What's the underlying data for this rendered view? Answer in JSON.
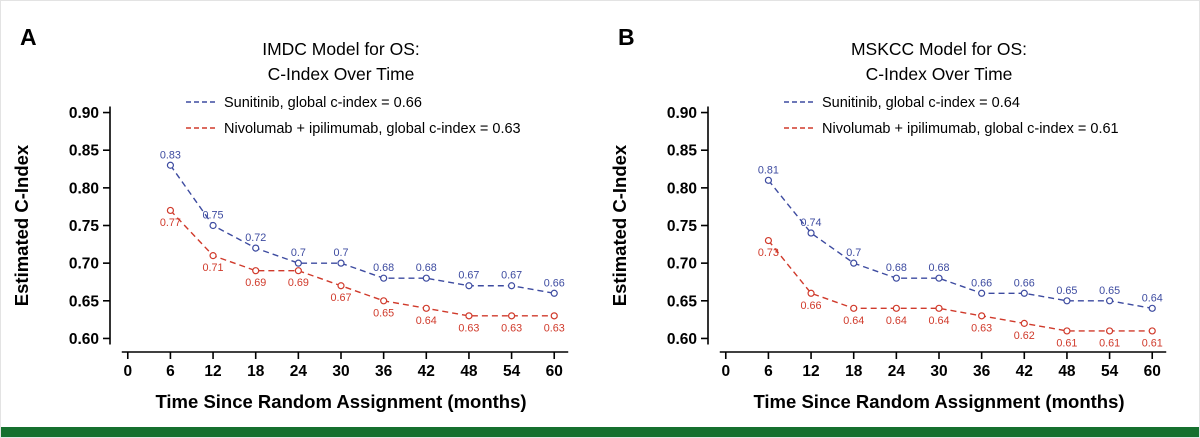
{
  "figure": {
    "background": "#ffffff",
    "accent_bar_color": "#15702e",
    "axis_color": "#000000",
    "text_color": "#000000"
  },
  "chart_data": [
    {
      "type": "line",
      "panel_label": "A",
      "title_lines": [
        "IMDC Model for OS:",
        "C-Index Over Time"
      ],
      "xlabel": "Time Since Random Assignment (months)",
      "ylabel": "Estimated C-Index",
      "x_ticks": [
        0,
        6,
        12,
        18,
        24,
        30,
        36,
        42,
        48,
        54,
        60
      ],
      "x_tick_labels": [
        "0",
        "6",
        "12",
        "18",
        "24",
        "30",
        "36",
        "42",
        "48",
        "54",
        "60"
      ],
      "y_ticks": [
        0.6,
        0.65,
        0.7,
        0.75,
        0.8,
        0.85,
        0.9
      ],
      "y_tick_labels": [
        "0.60",
        "0.65",
        "0.70",
        "0.75",
        "0.80",
        "0.85",
        "0.90"
      ],
      "xlim": [
        -2.5,
        62.5
      ],
      "ylim": [
        0.582,
        0.918
      ],
      "grid": false,
      "legend_position": "top-inside",
      "legend": [
        {
          "label": "Sunitinib, global c-index = 0.66",
          "color": "#3d4ba0"
        },
        {
          "label": "Nivolumab + ipilimumab, global c-index = 0.63",
          "color": "#d03a2b"
        }
      ],
      "series": [
        {
          "name": "Sunitinib",
          "color": "#3d4ba0",
          "line_style": "dashed",
          "marker": "open-circle",
          "label_position": "above",
          "x": [
            6,
            12,
            18,
            24,
            30,
            36,
            42,
            48,
            54,
            60
          ],
          "y": [
            0.83,
            0.75,
            0.72,
            0.7,
            0.7,
            0.68,
            0.68,
            0.67,
            0.67,
            0.66
          ],
          "point_labels": [
            "0.83",
            "0.75",
            "0.72",
            "0.7",
            "0.7",
            "0.68",
            "0.68",
            "0.67",
            "0.67",
            "0.66"
          ]
        },
        {
          "name": "Nivolumab + ipilimumab",
          "color": "#d03a2b",
          "line_style": "dashed",
          "marker": "open-circle",
          "label_position": "below",
          "x": [
            6,
            12,
            18,
            24,
            30,
            36,
            42,
            48,
            54,
            60
          ],
          "y": [
            0.77,
            0.71,
            0.69,
            0.69,
            0.67,
            0.65,
            0.64,
            0.63,
            0.63,
            0.63
          ],
          "point_labels": [
            "0.77",
            "0.71",
            "0.69",
            "0.69",
            "0.67",
            "0.65",
            "0.64",
            "0.63",
            "0.63",
            "0.63"
          ]
        }
      ]
    },
    {
      "type": "line",
      "panel_label": "B",
      "title_lines": [
        "MSKCC Model for OS:",
        "C-Index Over Time"
      ],
      "xlabel": "Time Since Random Assignment (months)",
      "ylabel": "Estimated C-Index",
      "x_ticks": [
        0,
        6,
        12,
        18,
        24,
        30,
        36,
        42,
        48,
        54,
        60
      ],
      "x_tick_labels": [
        "0",
        "6",
        "12",
        "18",
        "24",
        "30",
        "36",
        "42",
        "48",
        "54",
        "60"
      ],
      "y_ticks": [
        0.6,
        0.65,
        0.7,
        0.75,
        0.8,
        0.85,
        0.9
      ],
      "y_tick_labels": [
        "0.60",
        "0.65",
        "0.70",
        "0.75",
        "0.80",
        "0.85",
        "0.90"
      ],
      "xlim": [
        -2.5,
        62.5
      ],
      "ylim": [
        0.582,
        0.918
      ],
      "grid": false,
      "legend_position": "top-inside",
      "legend": [
        {
          "label": "Sunitinib, global c-index = 0.64",
          "color": "#3d4ba0"
        },
        {
          "label": "Nivolumab + ipilimumab, global c-index = 0.61",
          "color": "#d03a2b"
        }
      ],
      "series": [
        {
          "name": "Sunitinib",
          "color": "#3d4ba0",
          "line_style": "dashed",
          "marker": "open-circle",
          "label_position": "above",
          "x": [
            6,
            12,
            18,
            24,
            30,
            36,
            42,
            48,
            54,
            60
          ],
          "y": [
            0.81,
            0.74,
            0.7,
            0.68,
            0.68,
            0.66,
            0.66,
            0.65,
            0.65,
            0.64
          ],
          "point_labels": [
            "0.81",
            "0.74",
            "0.7",
            "0.68",
            "0.68",
            "0.66",
            "0.66",
            "0.65",
            "0.65",
            "0.64"
          ]
        },
        {
          "name": "Nivolumab + ipilimumab",
          "color": "#d03a2b",
          "line_style": "dashed",
          "marker": "open-circle",
          "label_position": "below",
          "x": [
            6,
            12,
            18,
            24,
            30,
            36,
            42,
            48,
            54,
            60
          ],
          "y": [
            0.73,
            0.66,
            0.64,
            0.64,
            0.64,
            0.63,
            0.62,
            0.61,
            0.61,
            0.61
          ],
          "point_labels": [
            "0.73",
            "0.66",
            "0.64",
            "0.64",
            "0.64",
            "0.63",
            "0.62",
            "0.61",
            "0.61",
            "0.61"
          ]
        }
      ]
    }
  ]
}
